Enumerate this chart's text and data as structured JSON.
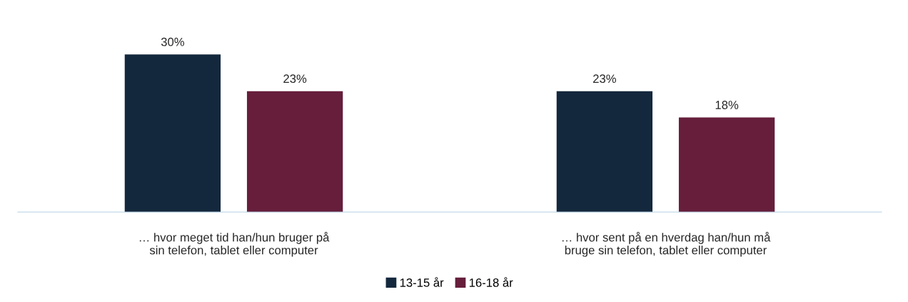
{
  "chart_data": {
    "type": "bar",
    "categories": [
      "… hvor meget tid han/hun bruger på\nsin telefon, tablet eller computer",
      "… hvor sent på en hverdag han/hun må\nbruge sin telefon, tablet eller computer"
    ],
    "series": [
      {
        "name": "13-15 år",
        "color": "#14283d",
        "values": [
          30,
          23
        ],
        "value_labels": [
          "30%",
          "23%"
        ]
      },
      {
        "name": "16-18 år",
        "color": "#661e3b",
        "values": [
          23,
          18
        ],
        "value_labels": [
          "23%",
          "18%"
        ]
      }
    ],
    "grid": false,
    "legend": "bottom"
  }
}
